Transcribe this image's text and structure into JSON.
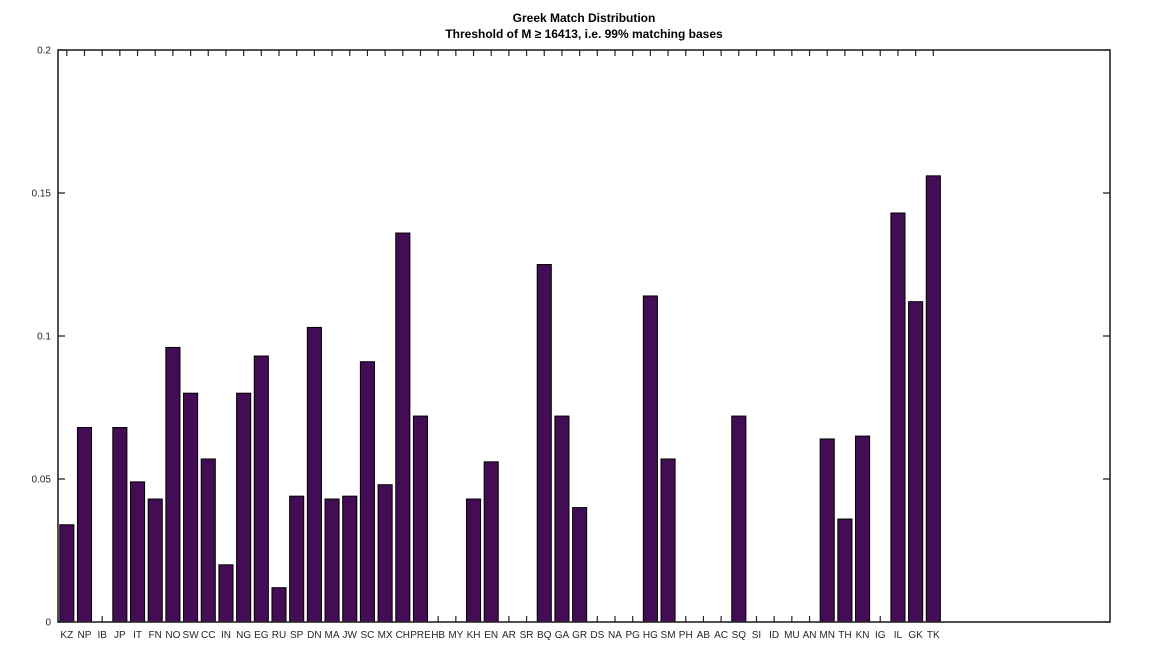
{
  "chart_data": {
    "type": "bar",
    "title": "Greek Match Distribution",
    "subtitle": "Threshold of M ≥ 16413, i.e. 99% matching bases",
    "xlabel": "",
    "ylabel": "",
    "categories": [
      "KZ",
      "NP",
      "IB",
      "JP",
      "IT",
      "FN",
      "NO",
      "SW",
      "CC",
      "IN",
      "NG",
      "EG",
      "RU",
      "SP",
      "DN",
      "MA",
      "JW",
      "SC",
      "MX",
      "CH",
      "PRE",
      "HB",
      "MY",
      "KH",
      "EN",
      "AR",
      "SR",
      "BQ",
      "GA",
      "GR",
      "DS",
      "NA",
      "PG",
      "HG",
      "SM",
      "PH",
      "AB",
      "AC",
      "SQ",
      "SI",
      "ID",
      "MU",
      "AN",
      "MN",
      "TH",
      "KN",
      "IG",
      "IL",
      "GK",
      "TK"
    ],
    "values": [
      0.034,
      0.068,
      0,
      0.068,
      0.049,
      0.043,
      0.096,
      0.08,
      0.057,
      0.02,
      0.08,
      0.093,
      0.012,
      0.044,
      0.103,
      0.043,
      0.044,
      0.091,
      0.048,
      0.136,
      0.072,
      0,
      0,
      0.043,
      0.056,
      0,
      0,
      0.125,
      0.072,
      0.04,
      0,
      0,
      0,
      0.114,
      0.057,
      0,
      0,
      0,
      0.072,
      0,
      0,
      0,
      0,
      0.064,
      0.036,
      0.065,
      0,
      0.143,
      0.112,
      0.156
    ],
    "ylim": [
      0,
      0.2
    ],
    "yticks": [
      0,
      0.05,
      0.1,
      0.15,
      0.2
    ],
    "ytick_labels": [
      "0",
      "0.05",
      "0.1",
      "0.15",
      "0.2"
    ],
    "grid": false,
    "legend": null,
    "box": true,
    "tick_direction": "in",
    "bar_color": "#420d54",
    "bar_edge_color": "#000000",
    "axis_color": "#262626",
    "background_color": "#ffffff"
  }
}
